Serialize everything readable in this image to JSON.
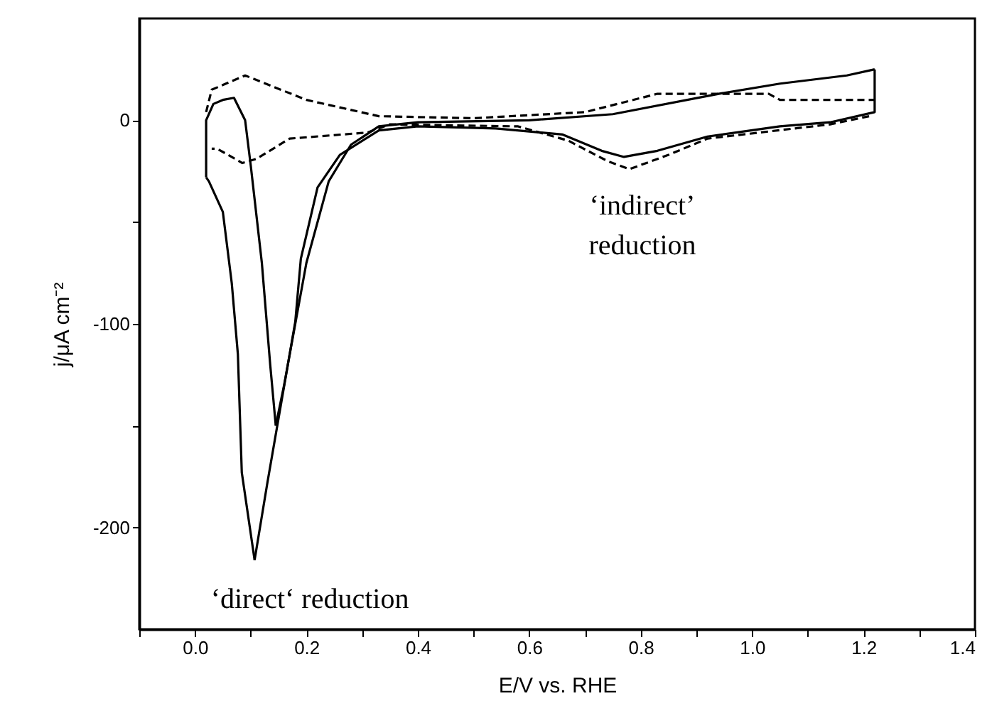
{
  "chart_data": {
    "type": "line",
    "xlabel": "E/V vs. RHE",
    "ylabel": "j/μA cm⁻²",
    "xlim": [
      -0.1,
      1.4
    ],
    "ylim": [
      -250,
      50
    ],
    "xticks": [
      {
        "value": -0.1,
        "label": null
      },
      {
        "value": 0,
        "label": "0.0"
      },
      {
        "value": 0.1,
        "label": null
      },
      {
        "value": 0.2,
        "label": "0.2"
      },
      {
        "value": 0.3,
        "label": null
      },
      {
        "value": 0.4,
        "label": "0.4"
      },
      {
        "value": 0.5,
        "label": null
      },
      {
        "value": 0.6,
        "label": "0.6"
      },
      {
        "value": 0.7,
        "label": null
      },
      {
        "value": 0.8,
        "label": "0.8"
      },
      {
        "value": 0.9,
        "label": null
      },
      {
        "value": 1.0,
        "label": "1.0"
      },
      {
        "value": 1.1,
        "label": null
      },
      {
        "value": 1.2,
        "label": "1.2"
      },
      {
        "value": 1.3,
        "label": null
      },
      {
        "value": 1.4,
        "label": "1.4"
      }
    ],
    "yticks": [
      0,
      {
        "value": -50,
        "label": null
      },
      -100,
      {
        "value": -150,
        "label": null
      },
      -200
    ],
    "grid": false,
    "marker": "none",
    "annotations": [
      "‘direct‘ reduction",
      "‘indirect’\nreduction"
    ],
    "series": [
      {
        "color": "#000000",
        "line_style": "solid",
        "x": [
          1.22,
          1.22,
          1.14,
          1.05,
          0.92,
          0.83,
          0.77,
          0.73,
          0.66,
          0.54,
          0.4,
          0.33,
          0.26,
          0.22,
          0.19,
          0.18,
          0.13,
          0.107
        ],
        "values": [
          25,
          4,
          -1,
          -3,
          -8,
          -15,
          -18,
          -15,
          -7,
          -4,
          -3,
          -5,
          -17,
          -33,
          -68,
          -99,
          -178,
          -216
        ]
      },
      {
        "color": "#000000",
        "line_style": "solid",
        "x": [
          0.107,
          0.084,
          0.077,
          0.066,
          0.05,
          0.025,
          0.02
        ],
        "values": [
          -216,
          -173,
          -115,
          -80,
          -45,
          -30,
          -28
        ]
      },
      {
        "color": "#000000",
        "line_style": "solid",
        "x": [
          0.02,
          0.02,
          0.033,
          0.05,
          0.07,
          0.09,
          0.1,
          0.12,
          0.135,
          0.145
        ],
        "values": [
          -28,
          0,
          8,
          10,
          11,
          0,
          -22,
          -70,
          -120,
          -150
        ]
      },
      {
        "color": "#000000",
        "line_style": "solid",
        "x": [
          0.145,
          0.16,
          0.18,
          0.2,
          0.24,
          0.28,
          0.33,
          0.4,
          0.6,
          0.75,
          0.94,
          1.05,
          1.17,
          1.22
        ],
        "values": [
          -150,
          -130,
          -100,
          -70,
          -30,
          -12,
          -3,
          -1,
          0,
          3,
          13,
          18,
          22,
          25
        ]
      },
      {
        "color": "#000000",
        "line_style": "dashed",
        "x": [
          0.02,
          0.03,
          0.09,
          0.2,
          0.33,
          0.5,
          0.7,
          0.83,
          1.03,
          1.05,
          1.22
        ],
        "values": [
          4,
          15,
          22,
          10,
          2,
          1,
          4,
          13,
          13,
          10,
          10
        ]
      },
      {
        "color": "#000000",
        "line_style": "dashed",
        "x": [
          1.21,
          1.14,
          0.92,
          0.85,
          0.78,
          0.74,
          0.67,
          0.58,
          0.35,
          0.31,
          0.17,
          0.11,
          0.085,
          0.04,
          0.03
        ],
        "values": [
          2,
          -2,
          -9,
          -17,
          -24,
          -20,
          -10,
          -3,
          -2,
          -6,
          -9,
          -19,
          -21,
          -14,
          -14
        ]
      }
    ]
  }
}
